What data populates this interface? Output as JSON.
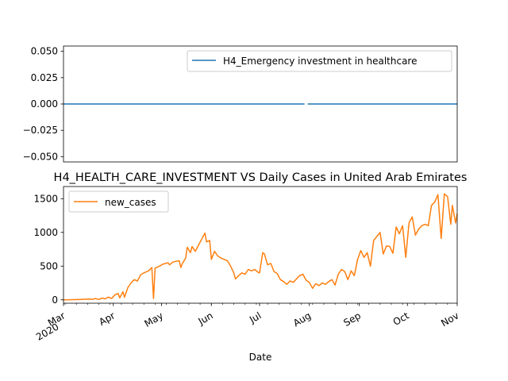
{
  "chart_data": [
    {
      "type": "line",
      "title": "",
      "xlabel": "",
      "ylabel": "",
      "ylim": [
        -0.055,
        0.055
      ],
      "yticks": [
        "0.050",
        "0.025",
        "0.000",
        "−0.025",
        "−0.050"
      ],
      "ytick_values": [
        0.05,
        0.025,
        0.0,
        -0.025,
        -0.05
      ],
      "legend": {
        "position": "top-right",
        "entries": [
          "H4_Emergency investment in healthcare"
        ]
      },
      "series": [
        {
          "name": "H4_Emergency investment in healthcare",
          "color": "#1f77b4",
          "segments": [
            {
              "start": "2020-03-01",
              "end": "2020-07-29",
              "value": 0
            },
            {
              "start": "2020-07-31",
              "end": "2020-11-01",
              "value": 0
            }
          ]
        }
      ]
    },
    {
      "type": "line",
      "title": "H4_HEALTH_CARE_INVESTMENT VS Daily Cases in United Arab Emirates",
      "xlabel": "Date",
      "ylabel": "",
      "ylim": [
        -50,
        1680
      ],
      "yticks": [
        "0",
        "500",
        "1000",
        "1500"
      ],
      "ytick_values": [
        0,
        500,
        1000,
        1500
      ],
      "xlim": [
        "2020-03-01",
        "2020-11-01"
      ],
      "xticks": [
        {
          "date": "2020-03-01",
          "label": "Mar",
          "sublabel": "2020"
        },
        {
          "date": "2020-04-01",
          "label": "Apr"
        },
        {
          "date": "2020-05-01",
          "label": "May"
        },
        {
          "date": "2020-06-01",
          "label": "Jun"
        },
        {
          "date": "2020-07-01",
          "label": "Jul"
        },
        {
          "date": "2020-08-01",
          "label": "Aug"
        },
        {
          "date": "2020-09-01",
          "label": "Sep"
        },
        {
          "date": "2020-10-01",
          "label": "Oct"
        },
        {
          "date": "2020-11-01",
          "label": "Nov"
        }
      ],
      "legend": {
        "position": "top-left",
        "entries": [
          "new_cases"
        ]
      },
      "series": [
        {
          "name": "new_cases",
          "color": "#ff7f0e",
          "points": [
            [
              "2020-03-01",
              0
            ],
            [
              "2020-03-05",
              2
            ],
            [
              "2020-03-09",
              4
            ],
            [
              "2020-03-12",
              6
            ],
            [
              "2020-03-15",
              10
            ],
            [
              "2020-03-17",
              12
            ],
            [
              "2020-03-19",
              8
            ],
            [
              "2020-03-21",
              20
            ],
            [
              "2020-03-23",
              5
            ],
            [
              "2020-03-25",
              25
            ],
            [
              "2020-03-27",
              15
            ],
            [
              "2020-03-29",
              41
            ],
            [
              "2020-03-31",
              20
            ],
            [
              "2020-04-02",
              75
            ],
            [
              "2020-04-04",
              95
            ],
            [
              "2020-04-05",
              30
            ],
            [
              "2020-04-07",
              120
            ],
            [
              "2020-04-08",
              40
            ],
            [
              "2020-04-10",
              180
            ],
            [
              "2020-04-12",
              250
            ],
            [
              "2020-04-14",
              300
            ],
            [
              "2020-04-16",
              280
            ],
            [
              "2020-04-18",
              370
            ],
            [
              "2020-04-20",
              400
            ],
            [
              "2020-04-23",
              430
            ],
            [
              "2020-04-25",
              480
            ],
            [
              "2020-04-26",
              20
            ],
            [
              "2020-04-27",
              470
            ],
            [
              "2020-04-29",
              490
            ],
            [
              "2020-05-02",
              530
            ],
            [
              "2020-05-05",
              550
            ],
            [
              "2020-05-06",
              520
            ],
            [
              "2020-05-08",
              560
            ],
            [
              "2020-05-10",
              570
            ],
            [
              "2020-05-12",
              580
            ],
            [
              "2020-05-13",
              480
            ],
            [
              "2020-05-14",
              540
            ],
            [
              "2020-05-16",
              620
            ],
            [
              "2020-05-17",
              780
            ],
            [
              "2020-05-19",
              700
            ],
            [
              "2020-05-20",
              790
            ],
            [
              "2020-05-22",
              720
            ],
            [
              "2020-05-24",
              810
            ],
            [
              "2020-05-26",
              900
            ],
            [
              "2020-05-28",
              990
            ],
            [
              "2020-05-29",
              860
            ],
            [
              "2020-05-31",
              880
            ],
            [
              "2020-06-01",
              600
            ],
            [
              "2020-06-03",
              720
            ],
            [
              "2020-06-05",
              650
            ],
            [
              "2020-06-07",
              620
            ],
            [
              "2020-06-09",
              600
            ],
            [
              "2020-06-11",
              580
            ],
            [
              "2020-06-13",
              500
            ],
            [
              "2020-06-15",
              400
            ],
            [
              "2020-06-16",
              310
            ],
            [
              "2020-06-18",
              360
            ],
            [
              "2020-06-20",
              400
            ],
            [
              "2020-06-22",
              380
            ],
            [
              "2020-06-24",
              450
            ],
            [
              "2020-06-26",
              430
            ],
            [
              "2020-06-28",
              450
            ],
            [
              "2020-06-30",
              410
            ],
            [
              "2020-07-01",
              400
            ],
            [
              "2020-07-03",
              700
            ],
            [
              "2020-07-04",
              680
            ],
            [
              "2020-07-06",
              520
            ],
            [
              "2020-07-08",
              540
            ],
            [
              "2020-07-10",
              420
            ],
            [
              "2020-07-12",
              390
            ],
            [
              "2020-07-14",
              300
            ],
            [
              "2020-07-16",
              270
            ],
            [
              "2020-07-18",
              230
            ],
            [
              "2020-07-20",
              280
            ],
            [
              "2020-07-22",
              260
            ],
            [
              "2020-07-24",
              310
            ],
            [
              "2020-07-26",
              360
            ],
            [
              "2020-07-28",
              380
            ],
            [
              "2020-07-30",
              290
            ],
            [
              "2020-08-01",
              260
            ],
            [
              "2020-08-03",
              170
            ],
            [
              "2020-08-05",
              240
            ],
            [
              "2020-08-07",
              210
            ],
            [
              "2020-08-09",
              250
            ],
            [
              "2020-08-11",
              230
            ],
            [
              "2020-08-13",
              270
            ],
            [
              "2020-08-15",
              300
            ],
            [
              "2020-08-17",
              220
            ],
            [
              "2020-08-19",
              380
            ],
            [
              "2020-08-21",
              450
            ],
            [
              "2020-08-23",
              420
            ],
            [
              "2020-08-25",
              300
            ],
            [
              "2020-08-27",
              430
            ],
            [
              "2020-08-29",
              360
            ],
            [
              "2020-08-31",
              600
            ],
            [
              "2020-09-02",
              730
            ],
            [
              "2020-09-04",
              630
            ],
            [
              "2020-09-06",
              700
            ],
            [
              "2020-09-08",
              500
            ],
            [
              "2020-09-10",
              880
            ],
            [
              "2020-09-12",
              940
            ],
            [
              "2020-09-14",
              1000
            ],
            [
              "2020-09-16",
              680
            ],
            [
              "2020-09-18",
              800
            ],
            [
              "2020-09-20",
              790
            ],
            [
              "2020-09-22",
              690
            ],
            [
              "2020-09-24",
              1080
            ],
            [
              "2020-09-26",
              980
            ],
            [
              "2020-09-28",
              1100
            ],
            [
              "2020-09-30",
              630
            ],
            [
              "2020-10-02",
              1140
            ],
            [
              "2020-10-04",
              1230
            ],
            [
              "2020-10-06",
              960
            ],
            [
              "2020-10-08",
              1050
            ],
            [
              "2020-10-10",
              1100
            ],
            [
              "2020-10-12",
              1120
            ],
            [
              "2020-10-14",
              1100
            ],
            [
              "2020-10-16",
              1400
            ],
            [
              "2020-10-18",
              1450
            ],
            [
              "2020-10-20",
              1560
            ],
            [
              "2020-10-22",
              910
            ],
            [
              "2020-10-24",
              1570
            ],
            [
              "2020-10-26",
              1530
            ],
            [
              "2020-10-28",
              1120
            ],
            [
              "2020-10-29",
              1400
            ],
            [
              "2020-10-31",
              1140
            ],
            [
              "2020-11-01",
              1280
            ]
          ]
        }
      ]
    }
  ]
}
